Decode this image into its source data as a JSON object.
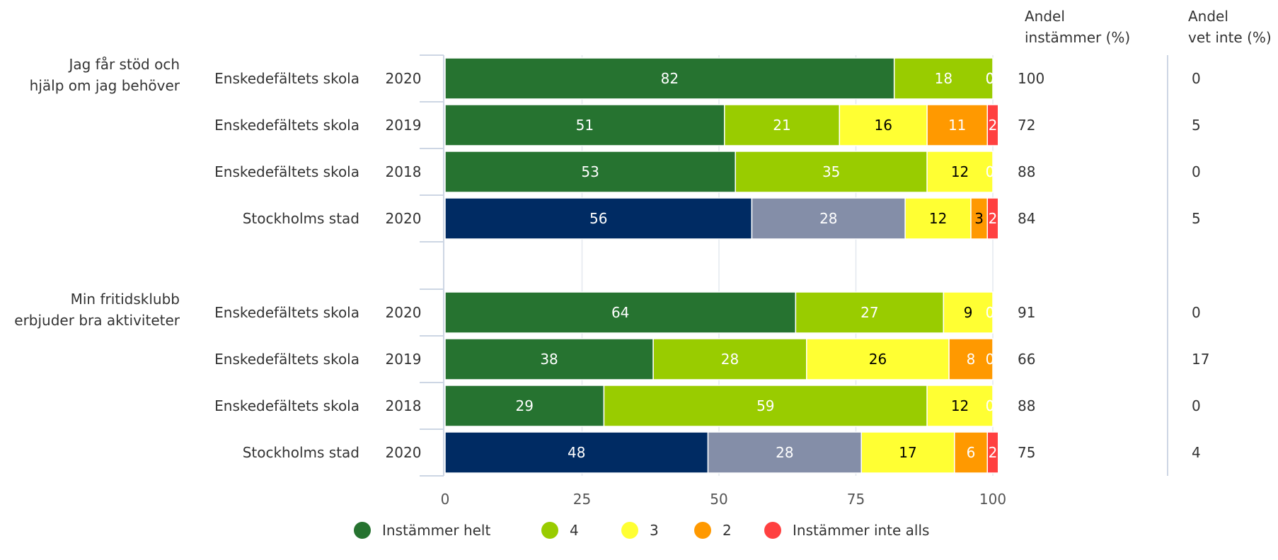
{
  "columns": {
    "agree": [
      "Andel",
      "instämmer (%)"
    ],
    "dontknow": [
      "Andel",
      "vet inte (%)"
    ]
  },
  "colors": {
    "helt": "#267330",
    "4": "#99cc00",
    "3": "#ffff33",
    "2": "#ff9900",
    "inte": "#ff4040",
    "city_helt": "#002b63",
    "city_4": "#848ea8",
    "axis": "#cdd6e4",
    "text": "#333333"
  },
  "chart_data": {
    "type": "bar",
    "orientation": "horizontal",
    "stacked": true,
    "xlim": [
      0,
      100
    ],
    "xticks": [
      0,
      25,
      50,
      75,
      100
    ],
    "grid": true,
    "legend_position": "bottom",
    "series_names": [
      "Instämmer helt",
      "4",
      "3",
      "2",
      "Instämmer inte alls"
    ],
    "groups": [
      {
        "label": [
          "Jag får stöd och",
          "hjälp om jag behöver"
        ],
        "rows": [
          {
            "name": "Enskedefältets skola",
            "year": "2020",
            "values": [
              82,
              18,
              0,
              0,
              0
            ],
            "agree": "100",
            "dontknow": "0",
            "city": false
          },
          {
            "name": "Enskedefältets skola",
            "year": "2019",
            "values": [
              51,
              21,
              16,
              11,
              2
            ],
            "agree": "72",
            "dontknow": "5",
            "city": false
          },
          {
            "name": "Enskedefältets skola",
            "year": "2018",
            "values": [
              53,
              35,
              12,
              0,
              0
            ],
            "agree": "88",
            "dontknow": "0",
            "city": false
          },
          {
            "name": "Stockholms stad",
            "year": "2020",
            "values": [
              56,
              28,
              12,
              3,
              2
            ],
            "agree": "84",
            "dontknow": "5",
            "city": true
          }
        ]
      },
      {
        "label": [
          "Min fritidsklubb",
          "erbjuder bra aktiviteter"
        ],
        "rows": [
          {
            "name": "Enskedefältets skola",
            "year": "2020",
            "values": [
              64,
              27,
              9,
              0,
              0
            ],
            "agree": "91",
            "dontknow": "0",
            "city": false
          },
          {
            "name": "Enskedefältets skola",
            "year": "2019",
            "values": [
              38,
              28,
              26,
              8,
              0
            ],
            "agree": "66",
            "dontknow": "17",
            "city": false
          },
          {
            "name": "Enskedefältets skola",
            "year": "2018",
            "values": [
              29,
              59,
              12,
              0,
              0
            ],
            "agree": "88",
            "dontknow": "0",
            "city": false
          },
          {
            "name": "Stockholms stad",
            "year": "2020",
            "values": [
              48,
              28,
              17,
              6,
              2
            ],
            "agree": "75",
            "dontknow": "4",
            "city": true
          }
        ]
      }
    ]
  }
}
